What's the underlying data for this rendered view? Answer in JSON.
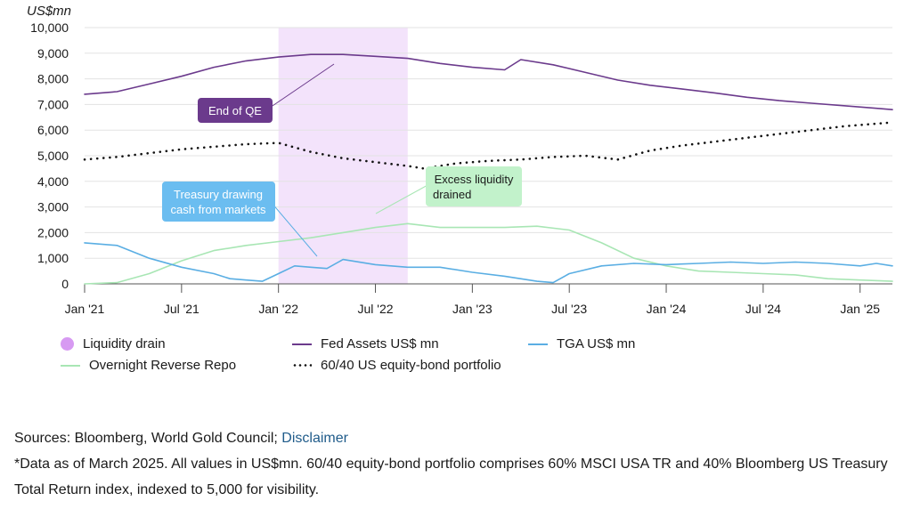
{
  "chart_data": {
    "type": "line",
    "y_unit_label": "US$mn",
    "ylim": [
      0,
      10000
    ],
    "y_ticks": [
      "10,000",
      "9,000",
      "8,000",
      "7,000",
      "6,000",
      "5,000",
      "4,000",
      "3,000",
      "2,000",
      "1,000",
      "0"
    ],
    "y_tick_values": [
      10000,
      9000,
      8000,
      7000,
      6000,
      5000,
      4000,
      3000,
      2000,
      1000,
      0
    ],
    "x_ticks": [
      "Jan '21",
      "Jul '21",
      "Jan '22",
      "Jul '22",
      "Jan '23",
      "Jul '23",
      "Jan '24",
      "Jul '24",
      "Jan '25"
    ],
    "x_tick_dates": [
      "2021-01",
      "2021-07",
      "2022-01",
      "2022-07",
      "2023-01",
      "2023-07",
      "2024-01",
      "2024-07",
      "2025-01"
    ],
    "xlim": [
      "2021-01",
      "2025-03"
    ],
    "shaded_period": {
      "name": "Liquidity drain",
      "start": "2022-01",
      "end": "2022-09",
      "color": "#f3e3fb"
    },
    "series": [
      {
        "name": "Fed Assets US$ mn",
        "color": "#6b3a8c",
        "style": "solid",
        "dates": [
          "2021-01",
          "2021-03",
          "2021-05",
          "2021-07",
          "2021-09",
          "2021-11",
          "2022-01",
          "2022-03",
          "2022-05",
          "2022-07",
          "2022-09",
          "2022-11",
          "2023-01",
          "2023-03",
          "2023-04",
          "2023-06",
          "2023-08",
          "2023-10",
          "2023-12",
          "2024-02",
          "2024-04",
          "2024-06",
          "2024-08",
          "2024-10",
          "2024-12",
          "2025-02",
          "2025-03"
        ],
        "values": [
          7400,
          7500,
          7800,
          8100,
          8450,
          8700,
          8850,
          8950,
          8950,
          8880,
          8800,
          8600,
          8450,
          8350,
          8750,
          8550,
          8250,
          7950,
          7750,
          7600,
          7450,
          7280,
          7150,
          7050,
          6950,
          6850,
          6800
        ]
      },
      {
        "name": "TGA US$ mn",
        "color": "#5aaee3",
        "style": "solid",
        "dates": [
          "2021-01",
          "2021-03",
          "2021-05",
          "2021-07",
          "2021-09",
          "2021-10",
          "2021-11",
          "2021-12",
          "2022-01",
          "2022-02",
          "2022-03",
          "2022-04",
          "2022-05",
          "2022-07",
          "2022-09",
          "2022-11",
          "2023-01",
          "2023-03",
          "2023-05",
          "2023-06",
          "2023-07",
          "2023-09",
          "2023-11",
          "2024-01",
          "2024-03",
          "2024-05",
          "2024-07",
          "2024-09",
          "2024-11",
          "2025-01",
          "2025-02",
          "2025-03"
        ],
        "values": [
          1600,
          1500,
          1000,
          650,
          400,
          200,
          150,
          100,
          400,
          700,
          650,
          600,
          950,
          750,
          650,
          650,
          450,
          300,
          100,
          50,
          400,
          700,
          800,
          750,
          800,
          850,
          800,
          850,
          800,
          700,
          800,
          700
        ]
      },
      {
        "name": "Overnight Reverse Repo",
        "color": "#a8e6b4",
        "style": "solid",
        "dates": [
          "2021-01",
          "2021-03",
          "2021-05",
          "2021-07",
          "2021-09",
          "2021-11",
          "2022-01",
          "2022-03",
          "2022-05",
          "2022-07",
          "2022-09",
          "2022-11",
          "2023-01",
          "2023-03",
          "2023-05",
          "2023-07",
          "2023-09",
          "2023-11",
          "2024-01",
          "2024-03",
          "2024-05",
          "2024-07",
          "2024-09",
          "2024-11",
          "2025-01",
          "2025-03"
        ],
        "values": [
          0,
          50,
          400,
          900,
          1300,
          1500,
          1650,
          1800,
          2000,
          2200,
          2350,
          2200,
          2200,
          2200,
          2250,
          2100,
          1600,
          1000,
          700,
          500,
          450,
          400,
          350,
          200,
          150,
          100
        ]
      },
      {
        "name": "60/40 US equity-bond portfolio",
        "color": "#111111",
        "style": "dotted",
        "dates": [
          "2021-01",
          "2021-03",
          "2021-05",
          "2021-07",
          "2021-09",
          "2021-11",
          "2022-01",
          "2022-03",
          "2022-05",
          "2022-07",
          "2022-09",
          "2022-10",
          "2022-12",
          "2023-02",
          "2023-04",
          "2023-06",
          "2023-08",
          "2023-10",
          "2023-12",
          "2024-02",
          "2024-04",
          "2024-06",
          "2024-08",
          "2024-10",
          "2024-12",
          "2025-02",
          "2025-03"
        ],
        "values": [
          4850,
          4950,
          5100,
          5250,
          5350,
          5450,
          5500,
          5150,
          4900,
          4750,
          4600,
          4500,
          4700,
          4800,
          4850,
          4950,
          5000,
          4850,
          5200,
          5400,
          5550,
          5700,
          5850,
          6000,
          6150,
          6250,
          6300
        ]
      }
    ],
    "annotations": [
      {
        "text": "End of QE",
        "style": "dark-purple"
      },
      {
        "text_lines": [
          "Treasury drawing",
          "cash from markets"
        ],
        "style": "light-blue"
      },
      {
        "text_lines": [
          "Excess liquidity",
          "drained"
        ],
        "style": "light-green"
      }
    ],
    "grid": true,
    "legend_position": "bottom"
  },
  "legend": {
    "items": [
      {
        "label": "Liquidity drain",
        "color": "#d79af2",
        "kind": "dot"
      },
      {
        "label": "Fed Assets US$ mn",
        "color": "#6b3a8c",
        "kind": "line"
      },
      {
        "label": "TGA US$ mn",
        "color": "#5aaee3",
        "kind": "line"
      },
      {
        "label": "Overnight Reverse Repo",
        "color": "#a8e6b4",
        "kind": "line"
      },
      {
        "label": "60/40 US equity-bond portfolio",
        "color": "#111111",
        "kind": "dots"
      }
    ]
  },
  "footer": {
    "sources_prefix": "Sources: Bloomberg, World Gold Council; ",
    "disclaimer_link": "Disclaimer",
    "note": "*Data as of March 2025. All values in US$mn. 60/40 equity-bond portfolio comprises 60% MSCI USA TR and 40% Bloomberg US Treasury Total Return index, indexed to 5,000 for visibility."
  }
}
